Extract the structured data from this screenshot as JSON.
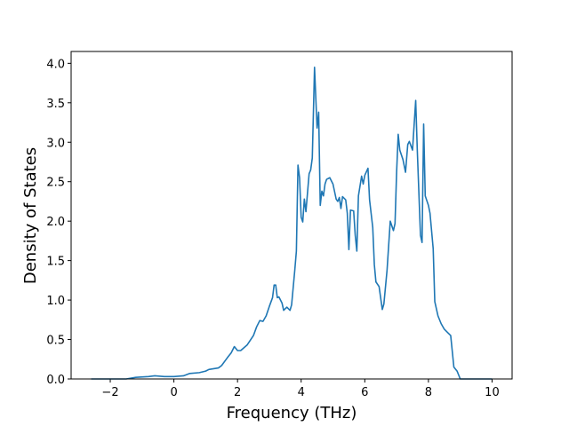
{
  "chart_data": {
    "type": "line",
    "xlabel": "Frequency (THz)",
    "ylabel": "Density of States",
    "color": "#1f77b4",
    "x": [
      -2.6,
      -1.5,
      -1.2,
      -0.8,
      -0.6,
      -0.3,
      0,
      0.3,
      0.5,
      0.8,
      1.0,
      1.1,
      1.4,
      1.5,
      1.7,
      1.8,
      1.9,
      2.0,
      2.1,
      2.3,
      2.5,
      2.6,
      2.7,
      2.8,
      2.9,
      3.0,
      3.1,
      3.15,
      3.2,
      3.25,
      3.3,
      3.4,
      3.45,
      3.55,
      3.65,
      3.7,
      3.8,
      3.85,
      3.9,
      3.95,
      4.0,
      4.05,
      4.1,
      4.15,
      4.25,
      4.3,
      4.35,
      4.42,
      4.5,
      4.55,
      4.6,
      4.65,
      4.7,
      4.75,
      4.8,
      4.9,
      5.0,
      5.1,
      5.15,
      5.2,
      5.25,
      5.3,
      5.4,
      5.45,
      5.5,
      5.55,
      5.65,
      5.7,
      5.75,
      5.8,
      5.9,
      5.95,
      6.0,
      6.1,
      6.15,
      6.25,
      6.3,
      6.35,
      6.45,
      6.55,
      6.6,
      6.7,
      6.8,
      6.9,
      6.95,
      7.0,
      7.05,
      7.1,
      7.2,
      7.28,
      7.35,
      7.4,
      7.5,
      7.6,
      7.65,
      7.75,
      7.8,
      7.85,
      7.9,
      8.0,
      8.05,
      8.15,
      8.2,
      8.3,
      8.4,
      8.5,
      8.6,
      8.7,
      8.8,
      8.9,
      9.0,
      10.0
    ],
    "values": [
      0,
      0,
      0.02,
      0.03,
      0.04,
      0.03,
      0.03,
      0.04,
      0.07,
      0.08,
      0.1,
      0.12,
      0.14,
      0.17,
      0.28,
      0.33,
      0.41,
      0.36,
      0.36,
      0.43,
      0.55,
      0.66,
      0.74,
      0.73,
      0.8,
      0.92,
      1.03,
      1.19,
      1.19,
      1.03,
      1.04,
      0.96,
      0.87,
      0.91,
      0.87,
      0.94,
      1.38,
      1.62,
      2.71,
      2.55,
      2.05,
      1.99,
      2.28,
      2.12,
      2.6,
      2.65,
      2.8,
      3.95,
      3.18,
      3.38,
      2.2,
      2.38,
      2.32,
      2.47,
      2.53,
      2.55,
      2.47,
      2.28,
      2.25,
      2.3,
      2.16,
      2.31,
      2.27,
      2.1,
      1.64,
      2.14,
      2.13,
      1.82,
      1.62,
      2.32,
      2.57,
      2.47,
      2.58,
      2.67,
      2.27,
      1.92,
      1.45,
      1.23,
      1.17,
      0.88,
      0.95,
      1.38,
      2.0,
      1.88,
      1.97,
      2.62,
      3.1,
      2.9,
      2.78,
      2.62,
      2.97,
      3.01,
      2.9,
      3.53,
      2.9,
      1.82,
      1.73,
      3.23,
      2.32,
      2.2,
      2.1,
      1.65,
      0.98,
      0.8,
      0.7,
      0.63,
      0.59,
      0.55,
      0.15,
      0.1,
      0,
      0
    ],
    "xlim": [
      -3.23,
      10.63
    ],
    "xticks": [
      {
        "value": -2,
        "label": "−2"
      },
      0,
      2,
      4,
      6,
      8,
      10
    ],
    "ylim": [
      0,
      4.15
    ],
    "yticks": [
      {
        "value": 0,
        "label": "0.0"
      },
      0.5,
      {
        "value": 1,
        "label": "1.0"
      },
      1.5,
      {
        "value": 2,
        "label": "2.0"
      },
      2.5,
      {
        "value": 3,
        "label": "3.0"
      },
      3.5,
      {
        "value": 4,
        "label": "4.0"
      }
    ]
  }
}
